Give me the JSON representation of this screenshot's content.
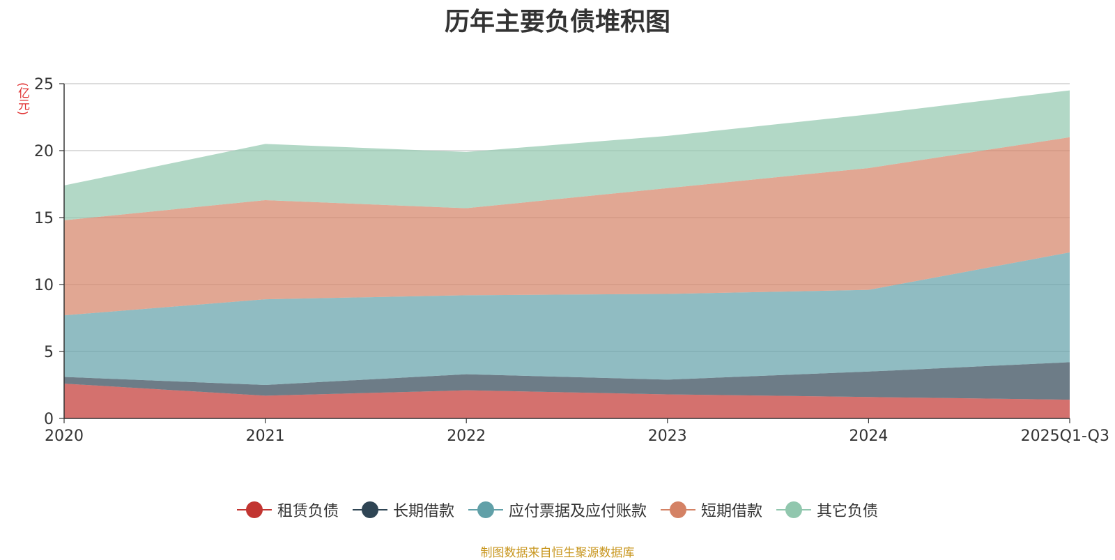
{
  "title": "历年主要负债堆积图",
  "source": "制图数据来自恒生聚源数据库",
  "chart_data": {
    "type": "area",
    "stacked": true,
    "title": "历年主要负债堆积图",
    "ylabel": "(亿元)",
    "xlabel": "",
    "ylim": [
      0,
      25
    ],
    "yticks": [
      0,
      5,
      10,
      15,
      20,
      25
    ],
    "grid": true,
    "legend_position": "bottom",
    "categories": [
      "2020",
      "2021",
      "2022",
      "2023",
      "2024",
      "2025Q1-Q3"
    ],
    "series": [
      {
        "name": "租赁负债",
        "color": "#c23531",
        "values": [
          2.6,
          1.7,
          2.1,
          1.8,
          1.6,
          1.4
        ]
      },
      {
        "name": "长期借款",
        "color": "#2f4554",
        "values": [
          0.5,
          0.8,
          1.2,
          1.1,
          1.9,
          2.8
        ]
      },
      {
        "name": "应付票据及应付账款",
        "color": "#61a0a8",
        "values": [
          4.6,
          6.4,
          5.9,
          6.4,
          6.1,
          8.2
        ]
      },
      {
        "name": "短期借款",
        "color": "#d48265",
        "values": [
          7.1,
          7.4,
          6.5,
          7.9,
          9.1,
          8.6
        ]
      },
      {
        "name": "其它负债",
        "color": "#91c7ae",
        "values": [
          2.6,
          4.2,
          4.2,
          3.9,
          4.0,
          3.5
        ]
      }
    ]
  }
}
